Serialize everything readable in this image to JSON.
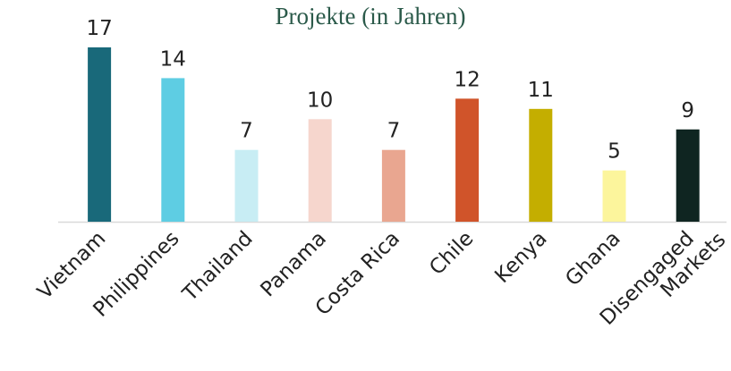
{
  "chart_data": {
    "type": "bar",
    "title": "Projekte (in Jahren)",
    "categories": [
      "Vietnam",
      "Philippines",
      "Thailand",
      "Panama",
      "Costa Rica",
      "Chile",
      "Kenya",
      "Ghana",
      "Disengaged Markets"
    ],
    "values": [
      17,
      14,
      7,
      10,
      7,
      12,
      11,
      5,
      9
    ],
    "colors": [
      "#19697a",
      "#5ecde3",
      "#c8edf4",
      "#f6d6cd",
      "#e9a690",
      "#d0542a",
      "#c4ae00",
      "#fcf59c",
      "#0f2521"
    ]
  }
}
